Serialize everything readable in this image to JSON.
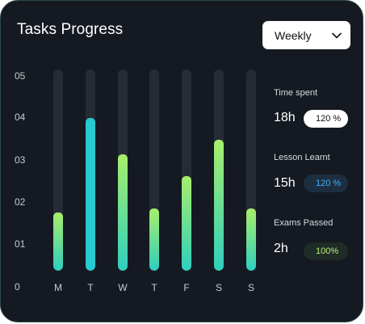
{
  "header": {
    "title": "Tasks Progress"
  },
  "period_select": {
    "selected": "Weekly"
  },
  "chart_data": {
    "type": "bar",
    "categories": [
      "M",
      "T",
      "W",
      "T",
      "F",
      "S",
      "S"
    ],
    "values": [
      1.45,
      3.8,
      2.9,
      1.55,
      2.35,
      3.25,
      1.55
    ],
    "ylim": [
      0,
      5
    ],
    "yticks": [
      "0",
      "01",
      "02",
      "03",
      "04",
      "05"
    ],
    "colors": [
      "gradient",
      "#28c9cf",
      "gradient",
      "gradient",
      "gradient",
      "gradient",
      "gradient"
    ]
  },
  "stats": [
    {
      "label": "Time spent",
      "value": "18h",
      "badge": "120 %"
    },
    {
      "label": "Lesson Learnt",
      "value": "15h",
      "badge": "120 %"
    },
    {
      "label": "Exams Passed",
      "value": "2h",
      "badge": "100%"
    }
  ],
  "colors": {
    "card_bg": "#151a22",
    "track": "#262b35",
    "accent_cyan": "#28c9cf",
    "accent_green": "#a8ee6a",
    "badge_blue": "#3ab7ff"
  }
}
